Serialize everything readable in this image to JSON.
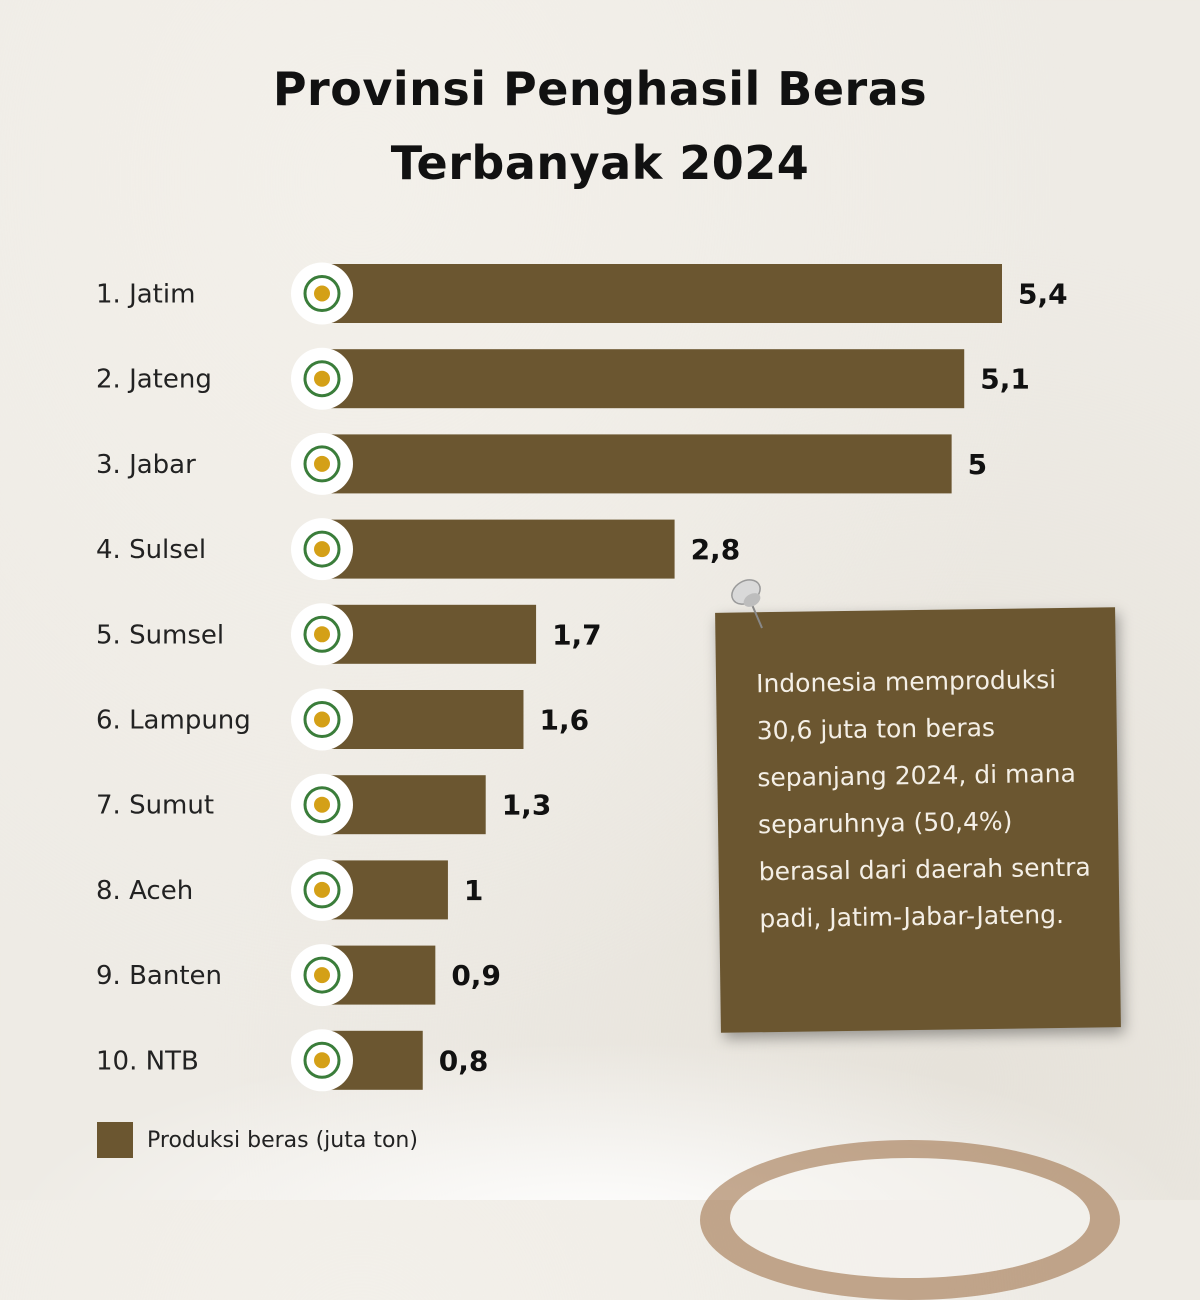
{
  "title_line1": "Provinsi Penghasil Beras",
  "title_line2": "Terbanyak 2024",
  "note_text": "Indonesia memproduksi 30,6 juta ton beras sepanjang 2024, di mana separuhnya (50,4%) berasal dari daerah sentra padi, Jatim-Jabar-Jateng.",
  "legend_label": "Produksi beras (juta ton)",
  "colors": {
    "bar": "#6b5630",
    "note": "#6b5630",
    "text": "#111111"
  },
  "chart_data": {
    "type": "bar",
    "orientation": "horizontal",
    "title": "Provinsi Penghasil Beras Terbanyak 2024",
    "categories": [
      "1. Jatim",
      "2. Jateng",
      "3. Jabar",
      "4. Sulsel",
      "5. Sumsel",
      "6. Lampung",
      "7. Sumut",
      "8. Aceh",
      "9. Banten",
      "10. NTB"
    ],
    "values": [
      5.4,
      5.1,
      5,
      2.8,
      1.7,
      1.6,
      1.3,
      1,
      0.9,
      0.8
    ],
    "value_labels": [
      "5,4",
      "5,1",
      "5",
      "2,8",
      "1,7",
      "1,6",
      "1,3",
      "1",
      "0,9",
      "0,8"
    ],
    "series": [
      {
        "name": "Produksi beras (juta ton)",
        "values": [
          5.4,
          5.1,
          5,
          2.8,
          1.7,
          1.6,
          1.3,
          1,
          0.9,
          0.8
        ]
      }
    ],
    "icons": [
      "jatim-emblem-icon",
      "jateng-emblem-icon",
      "jabar-emblem-icon",
      "sulsel-emblem-icon",
      "sumsel-emblem-icon",
      "lampung-emblem-icon",
      "sumut-emblem-icon",
      "aceh-emblem-icon",
      "banten-emblem-icon",
      "ntb-emblem-icon"
    ],
    "xlim": [
      0,
      5.4
    ],
    "grid": false,
    "legend": "bottom-left"
  }
}
